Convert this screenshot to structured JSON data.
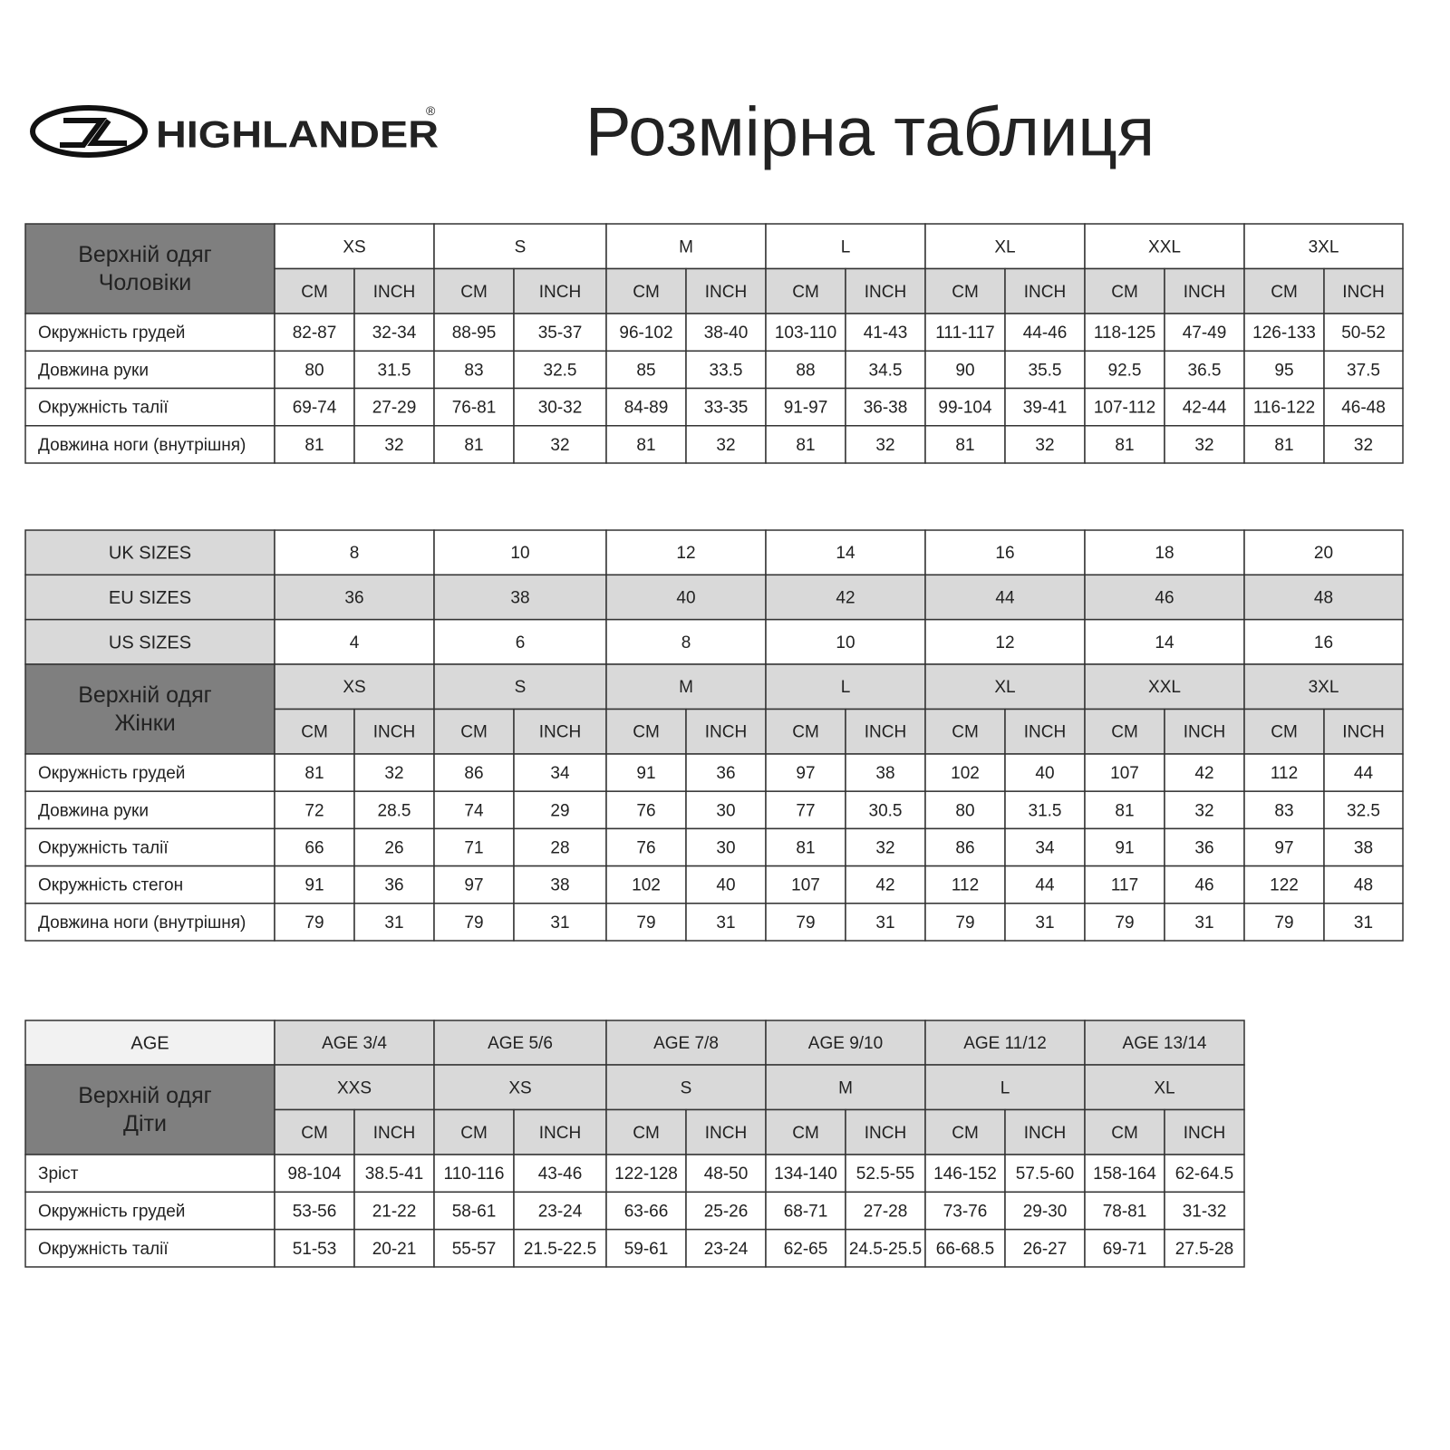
{
  "header": {
    "brand": "HIGHLANDER",
    "registered": "®",
    "title": "Розмірна таблиця"
  },
  "tables": [
    {
      "label_lines": [
        "Верхній одяг",
        "Чоловіки"
      ],
      "top_rows": [],
      "sizes": [
        "XS",
        "S",
        "M",
        "L",
        "XL",
        "XXL",
        "3XL"
      ],
      "units": [
        "CM",
        "INCH"
      ],
      "rows": [
        {
          "label": "Окружність грудей",
          "values": [
            "82-87",
            "32-34",
            "88-95",
            "35-37",
            "96-102",
            "38-40",
            "103-110",
            "41-43",
            "111-117",
            "44-46",
            "118-125",
            "47-49",
            "126-133",
            "50-52"
          ]
        },
        {
          "label": "Довжина руки",
          "values": [
            "80",
            "31.5",
            "83",
            "32.5",
            "85",
            "33.5",
            "88",
            "34.5",
            "90",
            "35.5",
            "92.5",
            "36.5",
            "95",
            "37.5"
          ]
        },
        {
          "label": "Окружність талії",
          "values": [
            "69-74",
            "27-29",
            "76-81",
            "30-32",
            "84-89",
            "33-35",
            "91-97",
            "36-38",
            "99-104",
            "39-41",
            "107-112",
            "42-44",
            "116-122",
            "46-48"
          ]
        },
        {
          "label": "Довжина ноги (внутрішня)",
          "values": [
            "81",
            "32",
            "81",
            "32",
            "81",
            "32",
            "81",
            "32",
            "81",
            "32",
            "81",
            "32",
            "81",
            "32"
          ]
        }
      ]
    },
    {
      "label_lines": [
        "Верхній одяг",
        "Жінки"
      ],
      "top_rows": [
        {
          "label": "UK SIZES",
          "values": [
            "8",
            "10",
            "12",
            "14",
            "16",
            "18",
            "20"
          ]
        },
        {
          "label": "EU SIZES",
          "values": [
            "36",
            "38",
            "40",
            "42",
            "44",
            "46",
            "48"
          ]
        },
        {
          "label": "US SIZES",
          "values": [
            "4",
            "6",
            "8",
            "10",
            "12",
            "14",
            "16"
          ]
        }
      ],
      "sizes": [
        "XS",
        "S",
        "M",
        "L",
        "XL",
        "XXL",
        "3XL"
      ],
      "units": [
        "CM",
        "INCH"
      ],
      "rows": [
        {
          "label": "Окружність грудей",
          "values": [
            "81",
            "32",
            "86",
            "34",
            "91",
            "36",
            "97",
            "38",
            "102",
            "40",
            "107",
            "42",
            "112",
            "44"
          ]
        },
        {
          "label": "Довжина руки",
          "values": [
            "72",
            "28.5",
            "74",
            "29",
            "76",
            "30",
            "77",
            "30.5",
            "80",
            "31.5",
            "81",
            "32",
            "83",
            "32.5"
          ]
        },
        {
          "label": "Окружність талії",
          "values": [
            "66",
            "26",
            "71",
            "28",
            "76",
            "30",
            "81",
            "32",
            "86",
            "34",
            "91",
            "36",
            "97",
            "38"
          ]
        },
        {
          "label": "Окружність стегон",
          "values": [
            "91",
            "36",
            "97",
            "38",
            "102",
            "40",
            "107",
            "42",
            "112",
            "44",
            "117",
            "46",
            "122",
            "48"
          ]
        },
        {
          "label": "Довжина ноги (внутрішня)",
          "values": [
            "79",
            "31",
            "79",
            "31",
            "79",
            "31",
            "79",
            "31",
            "79",
            "31",
            "79",
            "31",
            "79",
            "31"
          ]
        }
      ]
    },
    {
      "label_lines": [
        "Верхній одяг",
        "Діти"
      ],
      "top_rows": [
        {
          "label": "AGE",
          "values": [
            "AGE 3/4",
            "AGE 5/6",
            "AGE 7/8",
            "AGE 9/10",
            "AGE 11/12",
            "AGE 13/14"
          ]
        }
      ],
      "sizes": [
        "XXS",
        "XS",
        "S",
        "M",
        "L",
        "XL"
      ],
      "units": [
        "CM",
        "INCH"
      ],
      "rows": [
        {
          "label": "Зріст",
          "values": [
            "98-104",
            "38.5-41",
            "110-116",
            "43-46",
            "122-128",
            "48-50",
            "134-140",
            "52.5-55",
            "146-152",
            "57.5-60",
            "158-164",
            "62-64.5"
          ]
        },
        {
          "label": "Окружність грудей",
          "values": [
            "53-56",
            "21-22",
            "58-61",
            "23-24",
            "63-66",
            "25-26",
            "68-71",
            "27-28",
            "73-76",
            "29-30",
            "78-81",
            "31-32"
          ]
        },
        {
          "label": "Окружність талії",
          "values": [
            "51-53",
            "20-21",
            "55-57",
            "21.5-22.5",
            "59-61",
            "23-24",
            "62-65",
            "24.5-25.5",
            "66-68.5",
            "26-27",
            "69-71",
            "27.5-28"
          ]
        }
      ]
    }
  ]
}
